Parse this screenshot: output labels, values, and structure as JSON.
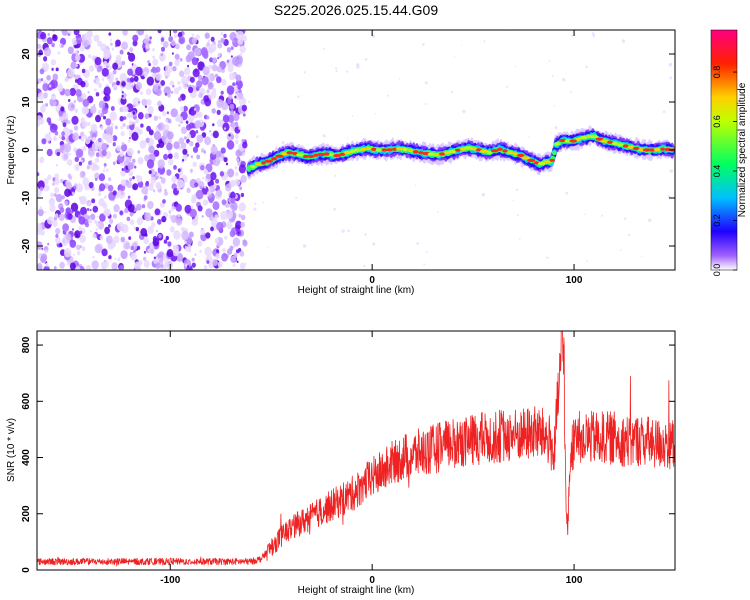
{
  "page": {
    "title": "S225.2026.025.15.44.G09"
  },
  "chart_data": [
    {
      "type": "heatmap",
      "xlabel": "Height of straight line (km)",
      "ylabel": "Frequency (Hz)",
      "xlim": [
        -166,
        150
      ],
      "ylim": [
        -25,
        25
      ],
      "x_ticks": [
        "-100",
        "0",
        "100"
      ],
      "y_ticks": [
        "-20",
        "-10",
        "0",
        "10",
        "20"
      ],
      "x_tick_values": [
        -100,
        0,
        100
      ],
      "y_tick_values": [
        -20,
        -10,
        0,
        10,
        20
      ],
      "noise_region_x_end": -63,
      "ridge": {
        "x": [
          -61,
          -57,
          -52,
          -47,
          -42,
          -37,
          -32,
          -27,
          -22,
          -17,
          -12,
          -7,
          -2,
          3,
          8,
          13,
          18,
          23,
          28,
          33,
          38,
          43,
          48,
          53,
          58,
          63,
          68,
          73,
          78,
          83,
          86,
          89,
          91,
          94,
          99,
          104,
          109,
          114,
          119,
          124,
          129,
          134,
          139,
          144,
          149
        ],
        "freq": [
          -4,
          -3,
          -2.5,
          -1.5,
          -0.5,
          -0.8,
          -1.5,
          -1,
          -0.8,
          -1.2,
          -0.5,
          0,
          0.3,
          0,
          0,
          0.3,
          0,
          -0.5,
          -0.8,
          -1,
          -0.5,
          0,
          0.5,
          0,
          -0.5,
          0.2,
          -0.5,
          -1,
          -2,
          -3,
          -2.5,
          -2.5,
          1,
          2,
          1.8,
          2.5,
          3,
          2,
          1.5,
          1,
          0.5,
          0,
          0,
          0.2,
          0
        ]
      },
      "colorbar": {
        "label": "Normalized spectral amplitude",
        "range": [
          0,
          0.97
        ],
        "ticks": [
          "0.0",
          "0.2",
          "0.4",
          "0.6",
          "0.8"
        ],
        "tick_values": [
          0,
          0.2,
          0.4,
          0.6,
          0.8
        ],
        "colors": [
          "#ffffff",
          "#8000ff",
          "#0000ff",
          "#00ffff",
          "#00ff00",
          "#ffff00",
          "#ff0000",
          "#ff0080"
        ]
      }
    },
    {
      "type": "line",
      "xlabel": "Height of straight line (km)",
      "ylabel": "SNR (10 * v/v)",
      "xlim": [
        -166,
        150
      ],
      "ylim": [
        0,
        850
      ],
      "x_ticks": [
        "-100",
        "0",
        "100"
      ],
      "y_ticks": [
        "0",
        "200",
        "400",
        "600",
        "800"
      ],
      "x_tick_values": [
        -100,
        0,
        100
      ],
      "y_tick_values": [
        0,
        200,
        400,
        600,
        800
      ],
      "color": "#ee2222",
      "series": [
        {
          "x": [
            -166,
            -150,
            -130,
            -110,
            -90,
            -70,
            -60,
            -55,
            -50,
            -45,
            -40,
            -35,
            -30,
            -25,
            -20,
            -15,
            -10,
            -5,
            0,
            5,
            10,
            15,
            20,
            25,
            30,
            35,
            40,
            45,
            50,
            55,
            60,
            65,
            70,
            75,
            80,
            85,
            88,
            90,
            92,
            94,
            95,
            96,
            97,
            98,
            100,
            102,
            105,
            110,
            115,
            120,
            125,
            130,
            135,
            140,
            145,
            150
          ],
          "snr": [
            30,
            30,
            30,
            30,
            30,
            30,
            30,
            40,
            80,
            120,
            150,
            170,
            190,
            210,
            230,
            250,
            270,
            300,
            330,
            350,
            380,
            400,
            410,
            420,
            430,
            440,
            450,
            460,
            460,
            470,
            470,
            480,
            480,
            480,
            490,
            480,
            460,
            400,
            600,
            800,
            780,
            200,
            150,
            400,
            460,
            470,
            470,
            470,
            470,
            470,
            460,
            460,
            460,
            450,
            450,
            450
          ]
        }
      ]
    }
  ]
}
